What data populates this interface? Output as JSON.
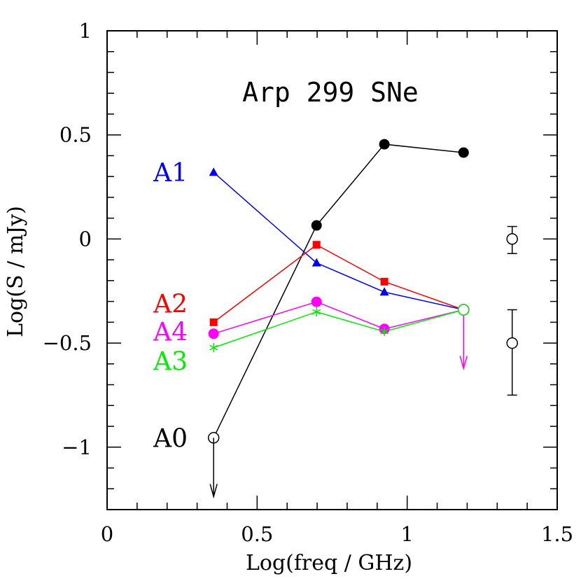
{
  "chart_data": {
    "type": "line",
    "title": "Arp 299 SNe",
    "xlabel": "Log(freq / GHz)",
    "ylabel": "Log(S / mJy)",
    "xlim": [
      0,
      1.5
    ],
    "ylim": [
      -1.3,
      1.0
    ],
    "x_ticks": [
      {
        "value": 0,
        "label": "0"
      },
      {
        "value": 0.5,
        "label": "0.5"
      },
      {
        "value": 1,
        "label": "1"
      },
      {
        "value": 1.5,
        "label": "1.5"
      }
    ],
    "y_ticks": [
      {
        "value": -1,
        "label": "−1"
      },
      {
        "value": -0.5,
        "label": "−0.5"
      },
      {
        "value": 0,
        "label": "0"
      },
      {
        "value": 0.5,
        "label": "0.5"
      },
      {
        "value": 1,
        "label": "1"
      }
    ],
    "grid": false,
    "series": [
      {
        "name": "A0",
        "color": "#000000",
        "marker": "circle",
        "points": [
          {
            "x": 0.355,
            "y": -0.955,
            "filled": false,
            "upper_limit": true
          },
          {
            "x": 0.698,
            "y": 0.065,
            "filled": true
          },
          {
            "x": 0.924,
            "y": 0.455,
            "filled": true
          },
          {
            "x": 1.188,
            "y": 0.415,
            "filled": true
          }
        ]
      },
      {
        "name": "A1",
        "color": "#0000ff",
        "marker": "triangle",
        "points": [
          {
            "x": 0.355,
            "y": 0.32,
            "filled": true
          },
          {
            "x": 0.698,
            "y": -0.115,
            "filled": true
          },
          {
            "x": 0.924,
            "y": -0.255,
            "filled": true
          },
          {
            "x": 1.188,
            "y": -0.34,
            "filled": false
          }
        ]
      },
      {
        "name": "A2",
        "color": "#ff0000",
        "marker": "square",
        "points": [
          {
            "x": 0.355,
            "y": -0.4,
            "filled": true
          },
          {
            "x": 0.698,
            "y": -0.028,
            "filled": true
          },
          {
            "x": 0.924,
            "y": -0.205,
            "filled": true
          },
          {
            "x": 1.188,
            "y": -0.34,
            "filled": false
          }
        ]
      },
      {
        "name": "A4",
        "color": "#ff00ff",
        "marker": "circle",
        "points": [
          {
            "x": 0.355,
            "y": -0.455,
            "filled": true
          },
          {
            "x": 0.698,
            "y": -0.302,
            "filled": true
          },
          {
            "x": 0.924,
            "y": -0.432,
            "filled": true
          },
          {
            "x": 1.188,
            "y": -0.34,
            "filled": false,
            "upper_limit": true
          }
        ]
      },
      {
        "name": "A3",
        "color": "#00ee00",
        "marker": "star",
        "points": [
          {
            "x": 0.355,
            "y": -0.522,
            "filled": true
          },
          {
            "x": 0.698,
            "y": -0.35,
            "filled": true
          },
          {
            "x": 0.924,
            "y": -0.445,
            "filled": true
          },
          {
            "x": 1.188,
            "y": -0.34,
            "filled": false
          }
        ]
      }
    ],
    "error_bar_examples": [
      {
        "x": 1.35,
        "y": 0.0,
        "yerr_low": -0.07,
        "yerr_high": 0.06
      },
      {
        "x": 1.35,
        "y": -0.5,
        "yerr_low": -0.75,
        "yerr_high": -0.34
      }
    ]
  }
}
